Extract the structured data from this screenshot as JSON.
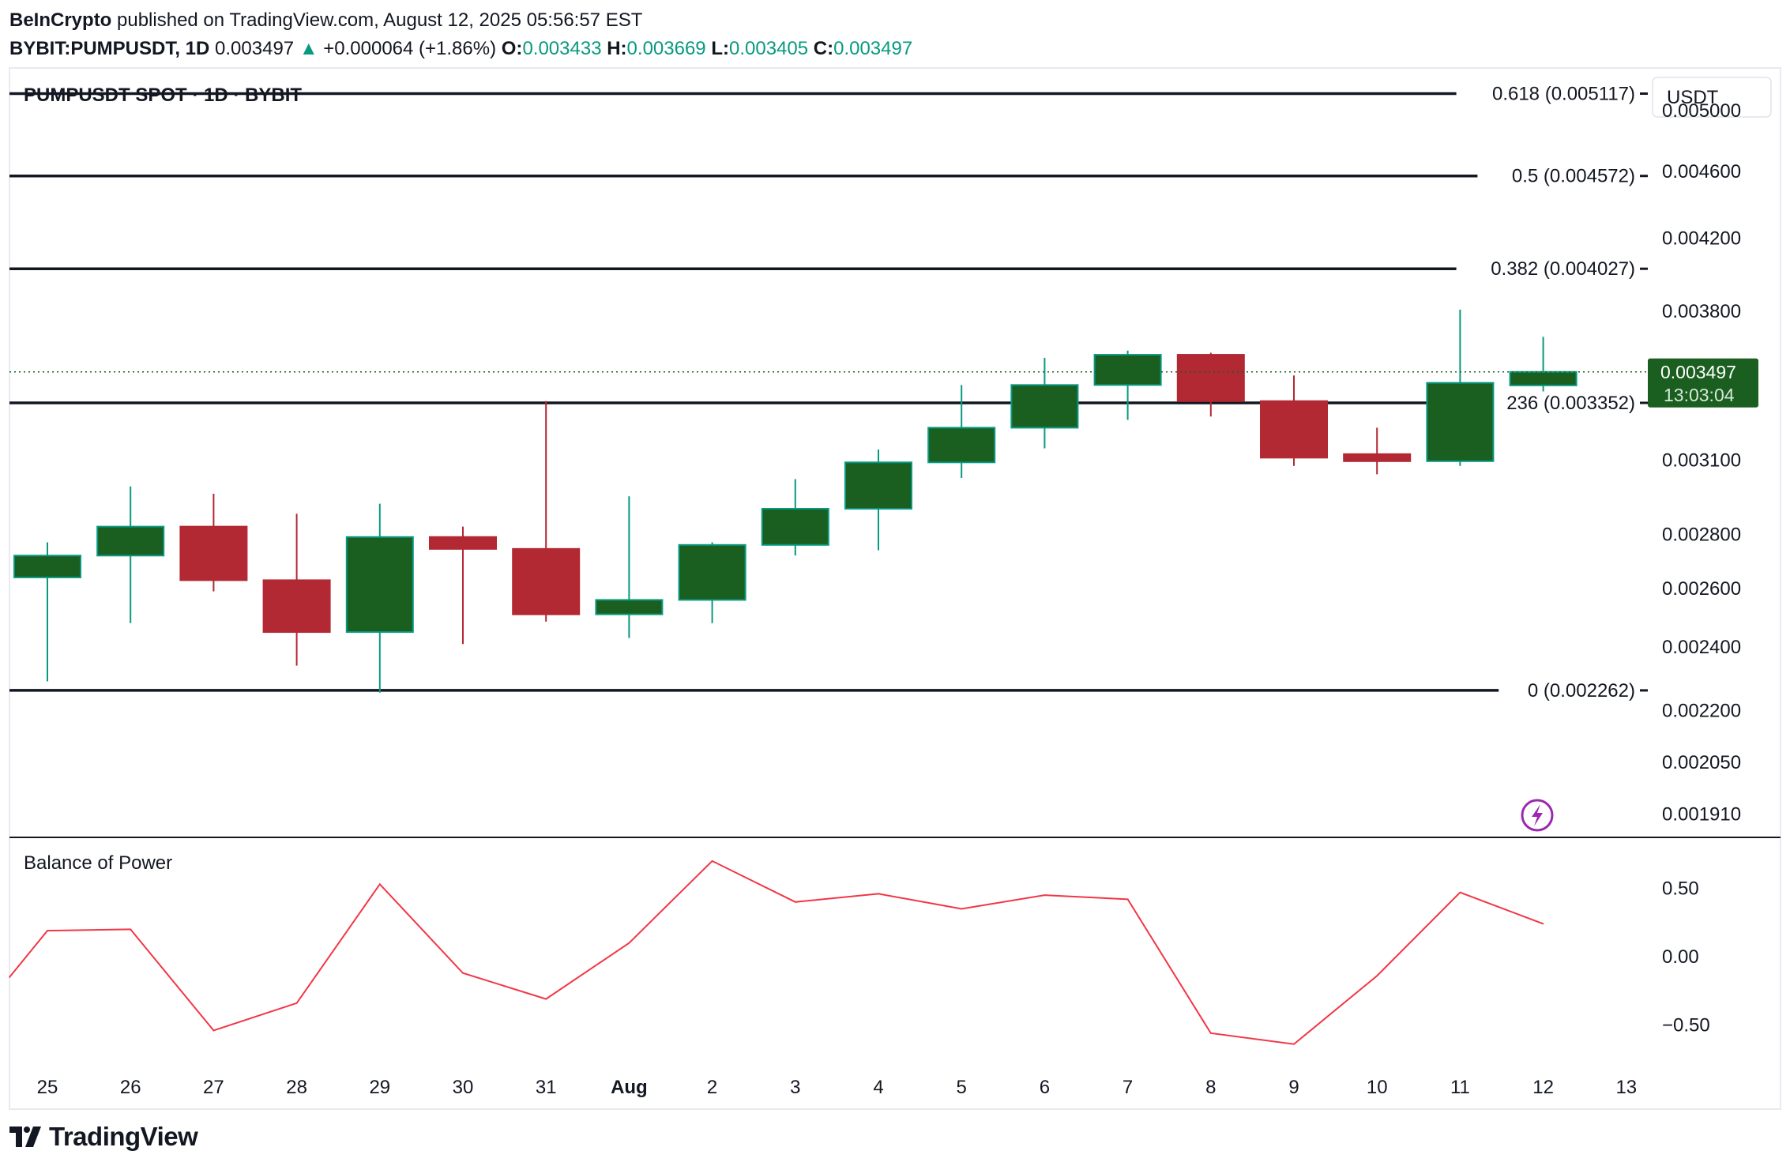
{
  "header": {
    "publisher": "BeInCrypto",
    "published_text": "published on TradingView.com, August 12, 2025 05:56:57 EST",
    "symbol": "BYBIT:PUMPUSDT, 1D",
    "last": "0.003497",
    "change": "+0.000064 (+1.86%)",
    "open_label": "O:",
    "open": "0.003433",
    "high_label": "H:",
    "high": "0.003669",
    "low_label": "L:",
    "low": "0.003405",
    "close_label": "C:",
    "close": "0.003497"
  },
  "pane_title": "PUMPUSDT SPOT · 1D · BYBIT",
  "currency_button": "USDT",
  "price_label": {
    "value": "0.003497",
    "countdown": "13:03:04"
  },
  "indicator_title": "Balance of Power",
  "footer": {
    "brand": "TradingView"
  },
  "colors": {
    "up": "#1a5e20",
    "down": "#b22833",
    "wick_up": "#089981",
    "wick_down": "#b22833",
    "bop": "#f23645",
    "accent": "#089981"
  },
  "chart_data": [
    {
      "type": "candlestick",
      "scale": "log",
      "ylim": [
        0.00185,
        0.0053
      ],
      "x": [
        "25",
        "26",
        "27",
        "28",
        "29",
        "30",
        "31",
        "Aug",
        "2",
        "3",
        "4",
        "5",
        "6",
        "7",
        "8",
        "9",
        "10",
        "11",
        "12",
        "13"
      ],
      "y_ticks": [
        "0.005000",
        "0.004600",
        "0.004200",
        "0.003800",
        "0.003100",
        "0.002800",
        "0.002600",
        "0.002400",
        "0.002200",
        "0.002050",
        "0.001910"
      ],
      "candles": [
        {
          "o": 0.00264,
          "h": 0.00277,
          "l": 0.00229,
          "c": 0.00272
        },
        {
          "o": 0.00272,
          "h": 0.00299,
          "l": 0.00248,
          "c": 0.00283
        },
        {
          "o": 0.00283,
          "h": 0.00296,
          "l": 0.00259,
          "c": 0.00263
        },
        {
          "o": 0.00263,
          "h": 0.00288,
          "l": 0.00234,
          "c": 0.00245
        },
        {
          "o": 0.00245,
          "h": 0.00292,
          "l": 0.002255,
          "c": 0.00279
        },
        {
          "o": 0.00279,
          "h": 0.00283,
          "l": 0.00241,
          "c": 0.002745
        },
        {
          "o": 0.002745,
          "h": 0.00336,
          "l": 0.002485,
          "c": 0.00251
        },
        {
          "o": 0.00251,
          "h": 0.00295,
          "l": 0.00243,
          "c": 0.00256
        },
        {
          "o": 0.00256,
          "h": 0.00277,
          "l": 0.00248,
          "c": 0.00276
        },
        {
          "o": 0.00276,
          "h": 0.00302,
          "l": 0.00272,
          "c": 0.0029
        },
        {
          "o": 0.0029,
          "h": 0.003145,
          "l": 0.00274,
          "c": 0.00309
        },
        {
          "o": 0.00309,
          "h": 0.003435,
          "l": 0.003025,
          "c": 0.00324
        },
        {
          "o": 0.00324,
          "h": 0.003565,
          "l": 0.00315,
          "c": 0.003435
        },
        {
          "o": 0.003435,
          "h": 0.0036,
          "l": 0.003275,
          "c": 0.00358
        },
        {
          "o": 0.00358,
          "h": 0.00359,
          "l": 0.00329,
          "c": 0.00336
        },
        {
          "o": 0.00336,
          "h": 0.00348,
          "l": 0.003075,
          "c": 0.00311
        },
        {
          "o": 0.003125,
          "h": 0.00324,
          "l": 0.00304,
          "c": 0.003095
        },
        {
          "o": 0.003095,
          "h": 0.003808,
          "l": 0.003075,
          "c": 0.003445
        },
        {
          "o": 0.003433,
          "h": 0.003669,
          "l": 0.003405,
          "c": 0.003497
        }
      ],
      "fib_levels": [
        {
          "label": "0.618 (0.005117)",
          "value": 0.005117
        },
        {
          "label": "0.5 (0.004572)",
          "value": 0.004572
        },
        {
          "label": "0.382 (0.004027)",
          "value": 0.004027
        },
        {
          "label": "236 (0.003352)",
          "value": 0.003352
        },
        {
          "label": "0 (0.002262)",
          "value": 0.002262
        }
      ],
      "last_price": 0.003497
    },
    {
      "type": "line",
      "name": "Balance of Power",
      "ylim": [
        -0.8,
        0.8
      ],
      "y_ticks": [
        {
          "v": 0.5,
          "label": "0.50"
        },
        {
          "v": 0.0,
          "label": "0.00"
        },
        {
          "v": -0.5,
          "label": "−0.50"
        }
      ],
      "x_start": "24",
      "values": [
        -0.15,
        0.19,
        0.2,
        -0.54,
        -0.34,
        0.53,
        -0.12,
        -0.31,
        0.1,
        0.7,
        0.4,
        0.46,
        0.35,
        0.45,
        0.42,
        -0.56,
        -0.64,
        -0.14,
        0.47,
        0.24
      ]
    }
  ]
}
